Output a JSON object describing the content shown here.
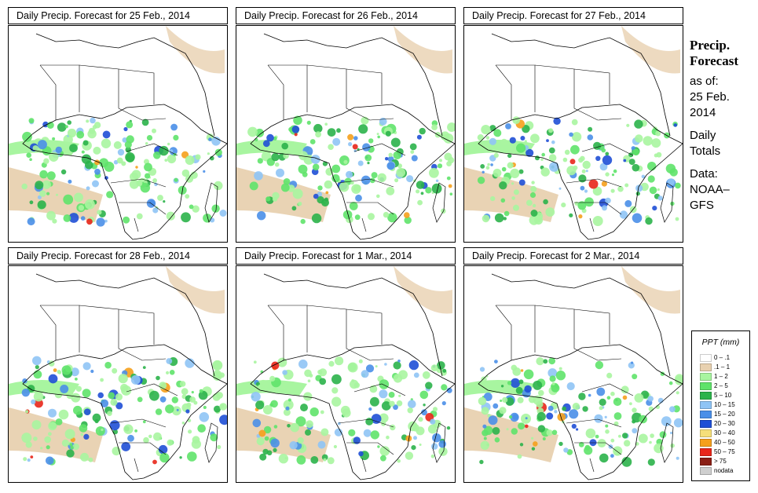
{
  "panels": [
    {
      "title": "Daily Precip. Forecast for  25 Feb., 2014"
    },
    {
      "title": "Daily Precip. Forecast for  26 Feb., 2014"
    },
    {
      "title": "Daily Precip. Forecast for  27 Feb., 2014"
    },
    {
      "title": "Daily Precip. Forecast for  28 Feb., 2014"
    },
    {
      "title": "Daily Precip. Forecast for  1 Mar., 2014"
    },
    {
      "title": "Daily Precip. Forecast for  2 Mar., 2014"
    }
  ],
  "side": {
    "title_line1": "Precip.",
    "title_line2": "Forecast",
    "asof_label": "as of:",
    "date_line1": "25 Feb.",
    "date_line2": "2014",
    "daily_line1": "Daily",
    "daily_line2": "Totals",
    "data_line1": "Data:",
    "data_line2": "NOAA–",
    "data_line3": "GFS"
  },
  "legend": {
    "title": "PPT (mm)",
    "items": [
      {
        "label": "0 – .1",
        "color": "#ffffff"
      },
      {
        "label": ".1 – 1",
        "color": "#e8d1b0"
      },
      {
        "label": "1 – 2",
        "color": "#a8f5a0"
      },
      {
        "label": "2 – 5",
        "color": "#5fe36a"
      },
      {
        "label": "5 – 10",
        "color": "#2bb34a"
      },
      {
        "label": "10 – 15",
        "color": "#8fc4f5"
      },
      {
        "label": "15 – 20",
        "color": "#4a8fe8"
      },
      {
        "label": "20 – 30",
        "color": "#1f4fd6"
      },
      {
        "label": "30 – 40",
        "color": "#f5df7a"
      },
      {
        "label": "40 – 50",
        "color": "#f5a01c"
      },
      {
        "label": "50 – 75",
        "color": "#e8261a"
      },
      {
        "label": "> 75",
        "color": "#8a1e14"
      },
      {
        "label": "nodata",
        "color": "#cfcfcf"
      }
    ]
  }
}
